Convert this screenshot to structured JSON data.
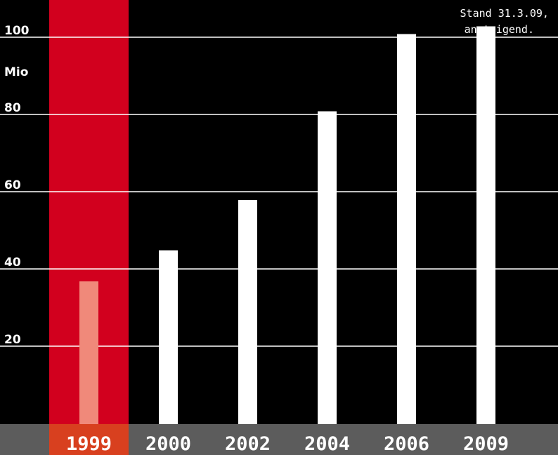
{
  "chart_data": {
    "type": "bar",
    "categories": [
      "1999",
      "2000",
      "2002",
      "2004",
      "2006",
      "2009"
    ],
    "values": [
      37,
      45,
      58,
      81,
      101,
      103
    ],
    "ylim": [
      0,
      110
    ],
    "yticks": [
      {
        "value": 20,
        "label": "20"
      },
      {
        "value": 40,
        "label": "40"
      },
      {
        "value": 60,
        "label": "60"
      },
      {
        "value": 80,
        "label": "80"
      },
      {
        "value": 100,
        "label": "100"
      }
    ],
    "y_unit": "Mio",
    "highlight_category": "1999",
    "annotation": [
      "Stand 31.3.09,",
      "ansteigend."
    ],
    "grid": true,
    "colors": {
      "background": "#000000",
      "bar": "#ffffff",
      "highlight_band": "#d2001e",
      "highlight_bar": "#f0897a",
      "gridline": "#ffffff",
      "axis_band": "#5c5c5c",
      "highlight_label_bg": "#d8401f"
    }
  }
}
